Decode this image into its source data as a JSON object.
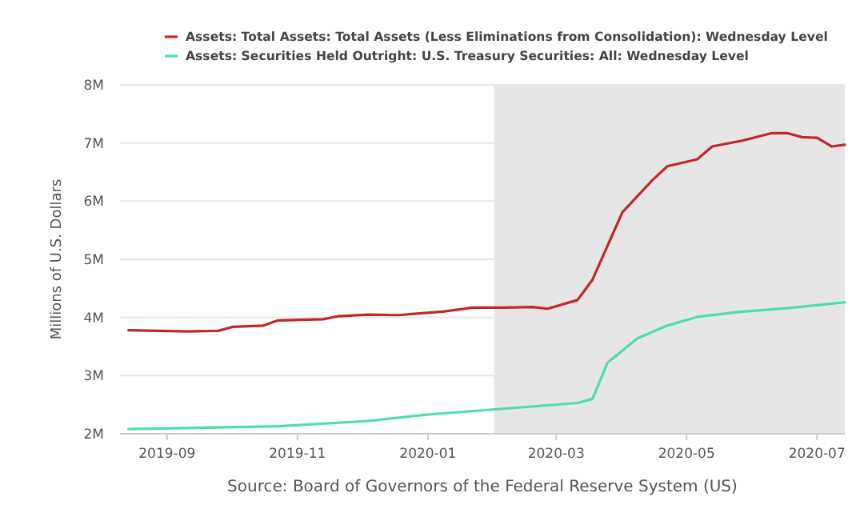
{
  "chart_data": {
    "type": "line",
    "ylabel": "Millions of U.S. Dollars",
    "annotations": [
      "Source: Board of Governors of the Federal Reserve System (US)"
    ],
    "xlim": [
      "2019-08-10",
      "2020-07-14"
    ],
    "xticks": [
      {
        "value": "2019-09-01",
        "label": "2019-09"
      },
      {
        "value": "2019-11-01",
        "label": "2019-11"
      },
      {
        "value": "2020-01-01",
        "label": "2020-01"
      },
      {
        "value": "2020-03-01",
        "label": "2020-03"
      },
      {
        "value": "2020-05-01",
        "label": "2020-05"
      },
      {
        "value": "2020-07-01",
        "label": "2020-07"
      }
    ],
    "ylim": [
      2000000,
      8000000
    ],
    "yticks": [
      {
        "value": 2000000,
        "label": "2M"
      },
      {
        "value": 3000000,
        "label": "3M"
      },
      {
        "value": 4000000,
        "label": "4M"
      },
      {
        "value": 5000000,
        "label": "5M"
      },
      {
        "value": 6000000,
        "label": "6M"
      },
      {
        "value": 7000000,
        "label": "7M"
      },
      {
        "value": 8000000,
        "label": "8M"
      }
    ],
    "grid": "y",
    "legend": "top left",
    "line_style": "solid",
    "bands": [
      {
        "axis": "x",
        "from": "2020-02-01",
        "to": "2020-07-14",
        "color": "#e6e6e6"
      }
    ],
    "series": [
      {
        "name": "Assets: Total Assets: Total Assets (Less Eliminations from Consolidation): Wednesday Level",
        "color": "#c0282d",
        "x": [
          "2019-08-14",
          "2019-09-11",
          "2019-09-25",
          "2019-10-02",
          "2019-10-16",
          "2019-10-23",
          "2019-11-13",
          "2019-11-20",
          "2019-12-04",
          "2019-12-18",
          "2020-01-08",
          "2020-01-22",
          "2020-02-05",
          "2020-02-19",
          "2020-02-26",
          "2020-03-11",
          "2020-03-18",
          "2020-04-01",
          "2020-04-15",
          "2020-04-22",
          "2020-05-06",
          "2020-05-13",
          "2020-05-27",
          "2020-06-10",
          "2020-06-17",
          "2020-06-24",
          "2020-07-01",
          "2020-07-08",
          "2020-07-14"
        ],
        "values": [
          3780000,
          3760000,
          3770000,
          3840000,
          3860000,
          3950000,
          3970000,
          4020000,
          4050000,
          4040000,
          4100000,
          4170000,
          4170000,
          4180000,
          4150000,
          4300000,
          4650000,
          5810000,
          6360000,
          6600000,
          6720000,
          6940000,
          7040000,
          7170000,
          7170000,
          7100000,
          7090000,
          6940000,
          6970000
        ]
      },
      {
        "name": "Assets: Securities Held Outright: U.S. Treasury Securities: All: Wednesday Level",
        "color": "#4fdcb0",
        "x": [
          "2019-08-14",
          "2019-10-23",
          "2019-12-04",
          "2020-01-01",
          "2020-02-05",
          "2020-03-11",
          "2020-03-18",
          "2020-03-25",
          "2020-04-08",
          "2020-04-22",
          "2020-05-06",
          "2020-05-27",
          "2020-06-17",
          "2020-07-14"
        ],
        "values": [
          2080000,
          2130000,
          2220000,
          2330000,
          2430000,
          2530000,
          2600000,
          3220000,
          3640000,
          3860000,
          4010000,
          4100000,
          4160000,
          4260000
        ]
      }
    ]
  }
}
